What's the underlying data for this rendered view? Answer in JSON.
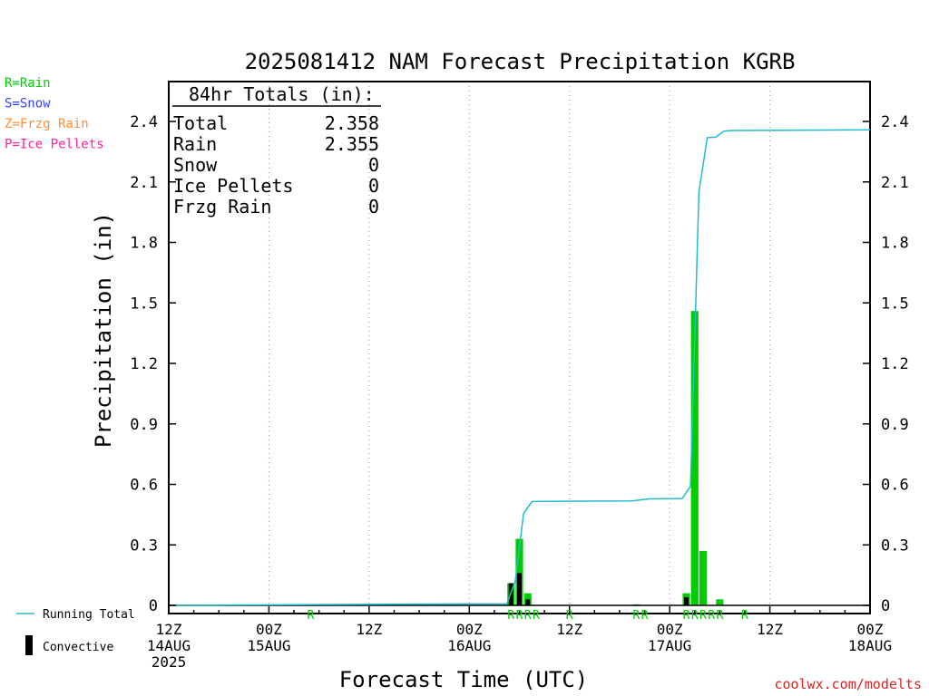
{
  "legend_types": [
    {
      "label": "R=Rain",
      "color": "#00cc00"
    },
    {
      "label": "S=Snow",
      "color": "#3344ff"
    },
    {
      "label": "Z=Frzg Rain",
      "color": "#ff8c33"
    },
    {
      "label": "P=Ice Pellets",
      "color": "#ff2299"
    }
  ],
  "legend_bottom": {
    "running_total": "Running Total",
    "convective": "Convective"
  },
  "totals_box": {
    "title": "84hr Totals (in):",
    "rows": [
      {
        "label": "Total",
        "value": "2.358"
      },
      {
        "label": "Rain",
        "value": "2.355"
      },
      {
        "label": "Snow",
        "value": "0"
      },
      {
        "label": "Ice Pellets",
        "value": "0"
      },
      {
        "label": "Frzg Rain",
        "value": "0"
      }
    ]
  },
  "credit": "coolwx.com/modelts",
  "colors": {
    "rain": "#00cc00",
    "running_total": "#22bbcc",
    "convective": "#000000",
    "precip_type_text": "#00cc00"
  },
  "chart_data": {
    "type": "bar",
    "title": "2025081412 NAM Forecast Precipitation KGRB",
    "xlabel": "Forecast Time (UTC)",
    "ylabel": "Precipitation (in)",
    "ylim": [
      0,
      2.55
    ],
    "xlim_hours": [
      0,
      84
    ],
    "yticks": [
      0,
      0.3,
      0.6,
      0.9,
      1.2,
      1.5,
      1.8,
      2.1,
      2.4
    ],
    "ytick_labels": [
      "0",
      "0.3",
      "0.6",
      "0.9",
      "1.2",
      "1.5",
      "1.8",
      "2.1",
      "2.4"
    ],
    "xticks": [
      {
        "hour": 0,
        "lines": [
          "12Z",
          "14AUG",
          "2025"
        ]
      },
      {
        "hour": 12,
        "lines": [
          "00Z",
          "15AUG"
        ]
      },
      {
        "hour": 24,
        "lines": [
          "12Z"
        ]
      },
      {
        "hour": 36,
        "lines": [
          "00Z",
          "16AUG"
        ]
      },
      {
        "hour": 48,
        "lines": [
          "12Z"
        ]
      },
      {
        "hour": 60,
        "lines": [
          "00Z",
          "17AUG"
        ]
      },
      {
        "hour": 72,
        "lines": [
          "12Z"
        ]
      },
      {
        "hour": 84,
        "lines": [
          "00Z",
          "18AUG"
        ]
      }
    ],
    "grid": "vertical dotted",
    "precip_bars": [
      {
        "hour": 41,
        "value": 0.11
      },
      {
        "hour": 42,
        "value": 0.33
      },
      {
        "hour": 43,
        "value": 0.06
      },
      {
        "hour": 56,
        "value": 0.005
      },
      {
        "hour": 62,
        "value": 0.06
      },
      {
        "hour": 63,
        "value": 1.46
      },
      {
        "hour": 64,
        "value": 0.27
      },
      {
        "hour": 66,
        "value": 0.03
      }
    ],
    "convective_bars": [
      {
        "hour": 41,
        "value": 0.11
      },
      {
        "hour": 42,
        "value": 0.16
      },
      {
        "hour": 43,
        "value": 0.03
      },
      {
        "hour": 62,
        "value": 0.04
      }
    ],
    "running_total": {
      "hours": [
        0,
        17,
        40,
        41,
        42,
        43,
        49,
        55,
        57,
        61,
        62,
        63,
        64,
        65,
        66,
        67,
        84
      ],
      "values": [
        0,
        0.004,
        0.008,
        0.12,
        0.455,
        0.515,
        0.517,
        0.518,
        0.528,
        0.53,
        0.59,
        2.05,
        2.32,
        2.322,
        2.352,
        2.355,
        2.358
      ]
    },
    "precip_type_marks": [
      {
        "hour": 17,
        "text": "R"
      },
      {
        "hour": 41,
        "text": "R"
      },
      {
        "hour": 42,
        "text": "R"
      },
      {
        "hour": 43,
        "text": "R"
      },
      {
        "hour": 44,
        "text": "R"
      },
      {
        "hour": 48,
        "text": "R"
      },
      {
        "hour": 56,
        "text": "R"
      },
      {
        "hour": 57,
        "text": "R"
      },
      {
        "hour": 62,
        "text": "R"
      },
      {
        "hour": 63,
        "text": "R"
      },
      {
        "hour": 64,
        "text": "R"
      },
      {
        "hour": 65,
        "text": "R"
      },
      {
        "hour": 66,
        "text": "R"
      },
      {
        "hour": 69,
        "text": "R"
      }
    ]
  }
}
